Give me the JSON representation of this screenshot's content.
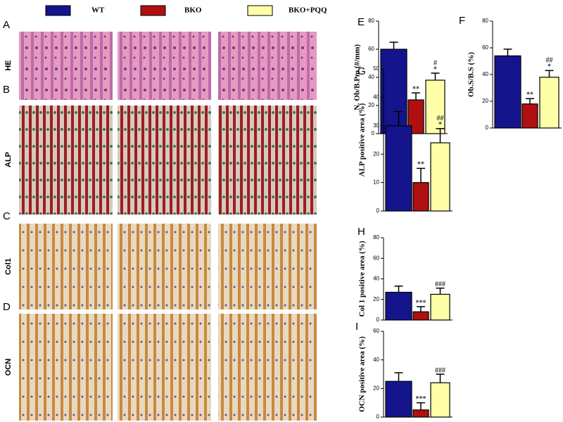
{
  "legend": [
    {
      "name": "WT",
      "color": "#14148c"
    },
    {
      "name": "BKO",
      "color": "#b01010"
    },
    {
      "name": "BKO+PQQ",
      "color": "#ffffa8"
    }
  ],
  "panels": [
    "A",
    "B",
    "C",
    "D"
  ],
  "rows": [
    "HE",
    "ALP",
    "Col1",
    "OCN"
  ],
  "chart_data": [
    {
      "type": "bar",
      "panel": "E",
      "ylabel": "N. Ob/B.Pm (#/mm)",
      "values": [
        60,
        24,
        38
      ],
      "errors": [
        5,
        5,
        5
      ],
      "annotations": [
        [],
        [
          "**"
        ],
        [
          "#",
          "*"
        ]
      ],
      "ylim": [
        0,
        80
      ],
      "yticks": [
        0,
        20,
        40,
        60,
        80
      ]
    },
    {
      "type": "bar",
      "panel": "F",
      "ylabel": "Ob.S/B.S (%)",
      "values": [
        54,
        18,
        38
      ],
      "errors": [
        5,
        4,
        5
      ],
      "annotations": [
        [],
        [
          "**"
        ],
        [
          "##",
          "*"
        ]
      ],
      "ylim": [
        0,
        80
      ],
      "yticks": [
        0,
        20,
        40,
        60,
        80
      ]
    },
    {
      "type": "bar",
      "panel": "G",
      "ylabel": "ALP positive area (%)",
      "values": [
        30,
        10,
        24
      ],
      "errors": [
        5,
        5,
        5
      ],
      "annotations": [
        [],
        [
          "**"
        ],
        [
          "##",
          "*"
        ]
      ],
      "ylim": [
        0,
        50
      ],
      "yticks": [
        0,
        10,
        20,
        30,
        40,
        50
      ]
    },
    {
      "type": "bar",
      "panel": "H",
      "ylabel": "Col 1 positive area (%)",
      "values": [
        27,
        8,
        25
      ],
      "errors": [
        6,
        5,
        6
      ],
      "annotations": [
        [],
        [
          "***"
        ],
        [
          "###"
        ]
      ],
      "ylim": [
        0,
        80
      ],
      "yticks": [
        0,
        20,
        40,
        60,
        80
      ]
    },
    {
      "type": "bar",
      "panel": "I",
      "ylabel": "OCN positive area (%)",
      "values": [
        25,
        5,
        24
      ],
      "errors": [
        6,
        5,
        6
      ],
      "annotations": [
        [],
        [
          "***"
        ],
        [
          "###"
        ]
      ],
      "ylim": [
        0,
        60
      ],
      "yticks": [
        0,
        20,
        40,
        60
      ]
    }
  ]
}
